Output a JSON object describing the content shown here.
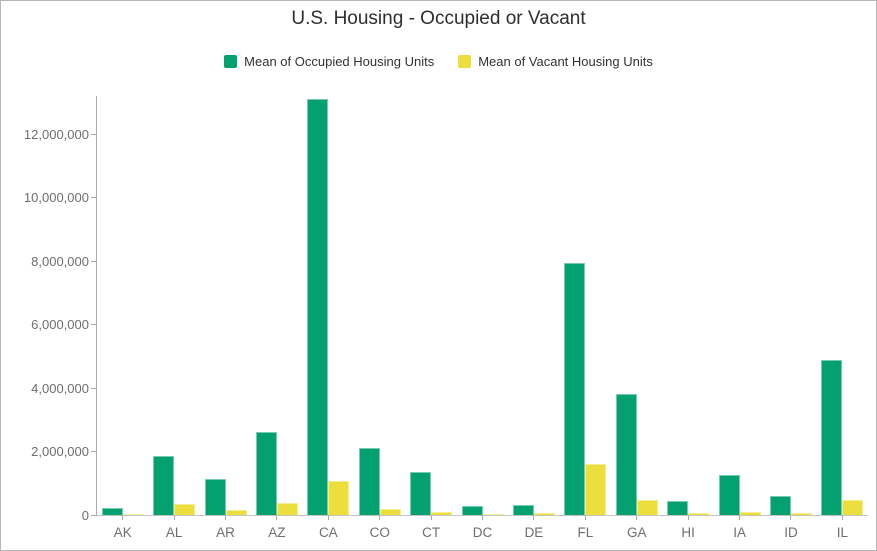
{
  "chart_data": {
    "type": "bar",
    "title": "U.S. Housing - Occupied or Vacant",
    "xlabel": "",
    "ylabel": "",
    "categories": [
      "AK",
      "AL",
      "AR",
      "AZ",
      "CA",
      "CO",
      "CT",
      "DC",
      "DE",
      "FL",
      "GA",
      "HI",
      "IA",
      "ID",
      "IL"
    ],
    "series": [
      {
        "name": "Mean of Occupied Housing Units",
        "color": "#05a06f",
        "values": [
          230000,
          1860000,
          1130000,
          2600000,
          13100000,
          2100000,
          1340000,
          270000,
          330000,
          7950000,
          3800000,
          430000,
          1250000,
          610000,
          4870000
        ]
      },
      {
        "name": "Mean of Vacant Housing Units",
        "color": "#ecdf3d",
        "values": [
          45000,
          360000,
          160000,
          380000,
          1080000,
          180000,
          95000,
          30000,
          60000,
          1600000,
          470000,
          65000,
          105000,
          75000,
          470000
        ]
      }
    ],
    "ylim": [
      0,
      13200000
    ],
    "yticks": [
      0,
      2000000,
      4000000,
      6000000,
      8000000,
      10000000,
      12000000
    ],
    "ytick_labels": [
      "0",
      "2,000,000",
      "4,000,000",
      "6,000,000",
      "8,000,000",
      "10,000,000",
      "12,000,000"
    ],
    "grid": false,
    "legend_position": "top"
  }
}
